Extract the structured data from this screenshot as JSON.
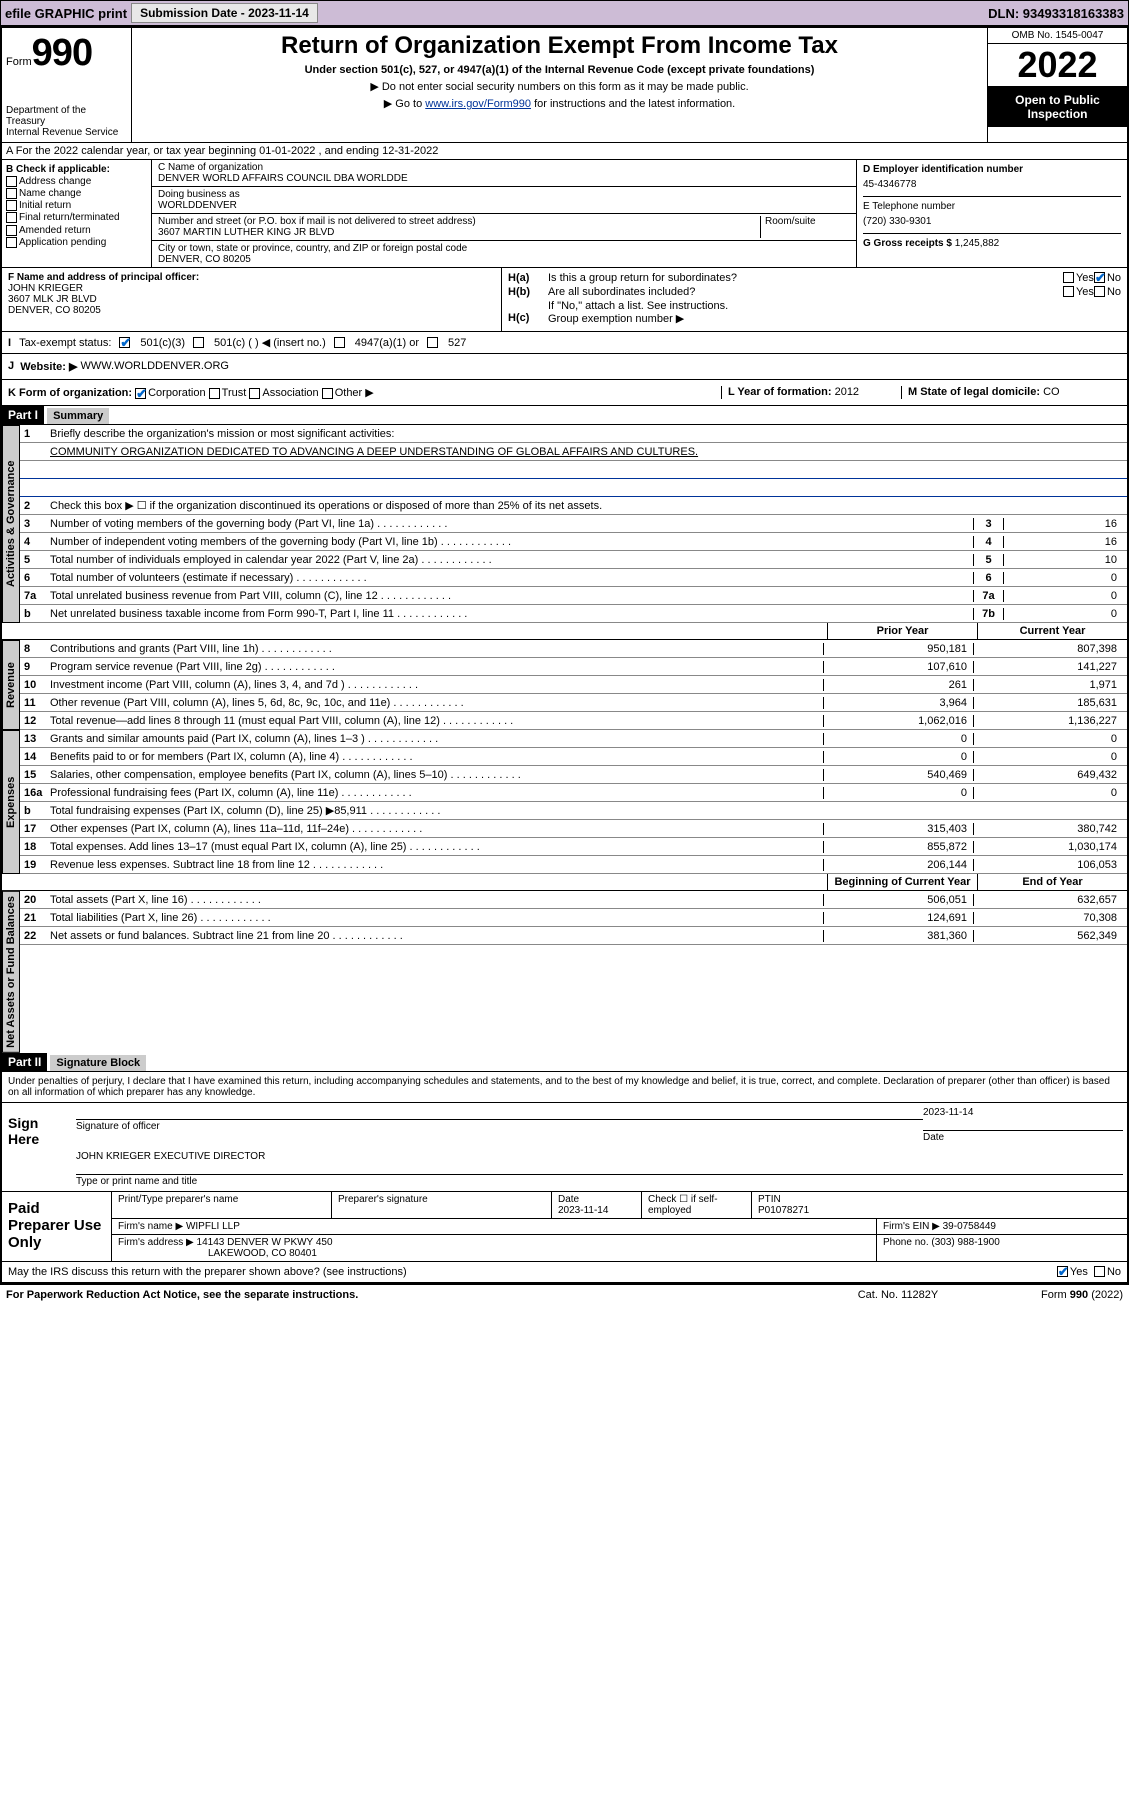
{
  "topbar": {
    "efile": "efile GRAPHIC print",
    "submission_label": "Submission Date - 2023-11-14",
    "dln": "DLN: 93493318163383"
  },
  "header": {
    "form_label": "Form",
    "form_num": "990",
    "dept": "Department of the Treasury\nInternal Revenue Service",
    "title": "Return of Organization Exempt From Income Tax",
    "subtitle": "Under section 501(c), 527, or 4947(a)(1) of the Internal Revenue Code (except private foundations)",
    "note1": "▶ Do not enter social security numbers on this form as it may be made public.",
    "note2_pre": "▶ Go to ",
    "note2_link": "www.irs.gov/Form990",
    "note2_post": " for instructions and the latest information.",
    "omb": "OMB No. 1545-0047",
    "year": "2022",
    "open": "Open to Public Inspection"
  },
  "row_a": "A For the 2022 calendar year, or tax year beginning 01-01-2022    , and ending 12-31-2022",
  "section_b": {
    "label": "B Check if applicable:",
    "opts": [
      "Address change",
      "Name change",
      "Initial return",
      "Final return/terminated",
      "Amended return",
      "Application pending"
    ]
  },
  "section_c": {
    "name_label": "C Name of organization",
    "name": "DENVER WORLD AFFAIRS COUNCIL DBA WORLDDE",
    "dba_label": "Doing business as",
    "dba": "WORLDDENVER",
    "street_label": "Number and street (or P.O. box if mail is not delivered to street address)",
    "room_label": "Room/suite",
    "street": "3607 MARTIN LUTHER KING JR BLVD",
    "city_label": "City or town, state or province, country, and ZIP or foreign postal code",
    "city": "DENVER, CO  80205"
  },
  "section_d": {
    "ein_label": "D Employer identification number",
    "ein": "45-4346778",
    "phone_label": "E Telephone number",
    "phone": "(720) 330-9301",
    "gross_label": "G Gross receipts $",
    "gross": "1,245,882"
  },
  "section_f": {
    "label": "F Name and address of principal officer:",
    "name": "JOHN KRIEGER",
    "street": "3607 MLK JR BLVD",
    "city": "DENVER, CO  80205"
  },
  "section_h": {
    "ha": "Is this a group return for subordinates?",
    "hb": "Are all subordinates included?",
    "hb_note": "If \"No,\" attach a list. See instructions.",
    "hc": "Group exemption number ▶"
  },
  "row_i": {
    "label": "Tax-exempt status:",
    "opt1": "501(c)(3)",
    "opt2": "501(c) (  ) ◀ (insert no.)",
    "opt3": "4947(a)(1) or",
    "opt4": "527"
  },
  "row_j": {
    "label": "Website: ▶",
    "value": "WWW.WORLDDENVER.ORG"
  },
  "row_k": {
    "label": "K Form of organization:",
    "opts": [
      "Corporation",
      "Trust",
      "Association",
      "Other ▶"
    ],
    "l_label": "L Year of formation:",
    "l_val": "2012",
    "m_label": "M State of legal domicile:",
    "m_val": "CO"
  },
  "part1": {
    "hdr": "Part I",
    "title": "Summary",
    "l1_label": "Briefly describe the organization's mission or most significant activities:",
    "l1_text": "COMMUNITY ORGANIZATION DEDICATED TO ADVANCING A DEEP UNDERSTANDING OF GLOBAL AFFAIRS AND CULTURES.",
    "l2": "Check this box ▶ ☐  if the organization discontinued its operations or disposed of more than 25% of its net assets.",
    "lines_gov": [
      {
        "n": "3",
        "t": "Number of voting members of the governing body (Part VI, line 1a)",
        "b": "3",
        "v": "16"
      },
      {
        "n": "4",
        "t": "Number of independent voting members of the governing body (Part VI, line 1b)",
        "b": "4",
        "v": "16"
      },
      {
        "n": "5",
        "t": "Total number of individuals employed in calendar year 2022 (Part V, line 2a)",
        "b": "5",
        "v": "10"
      },
      {
        "n": "6",
        "t": "Total number of volunteers (estimate if necessary)",
        "b": "6",
        "v": "0"
      },
      {
        "n": "7a",
        "t": "Total unrelated business revenue from Part VIII, column (C), line 12",
        "b": "7a",
        "v": "0"
      },
      {
        "n": "b",
        "t": "Net unrelated business taxable income from Form 990-T, Part I, line 11",
        "b": "7b",
        "v": "0"
      }
    ],
    "col_prior": "Prior Year",
    "col_current": "Current Year",
    "lines_rev": [
      {
        "n": "8",
        "t": "Contributions and grants (Part VIII, line 1h)",
        "v1": "950,181",
        "v2": "807,398"
      },
      {
        "n": "9",
        "t": "Program service revenue (Part VIII, line 2g)",
        "v1": "107,610",
        "v2": "141,227"
      },
      {
        "n": "10",
        "t": "Investment income (Part VIII, column (A), lines 3, 4, and 7d )",
        "v1": "261",
        "v2": "1,971"
      },
      {
        "n": "11",
        "t": "Other revenue (Part VIII, column (A), lines 5, 6d, 8c, 9c, 10c, and 11e)",
        "v1": "3,964",
        "v2": "185,631"
      },
      {
        "n": "12",
        "t": "Total revenue—add lines 8 through 11 (must equal Part VIII, column (A), line 12)",
        "v1": "1,062,016",
        "v2": "1,136,227"
      }
    ],
    "lines_exp": [
      {
        "n": "13",
        "t": "Grants and similar amounts paid (Part IX, column (A), lines 1–3 )",
        "v1": "0",
        "v2": "0"
      },
      {
        "n": "14",
        "t": "Benefits paid to or for members (Part IX, column (A), line 4)",
        "v1": "0",
        "v2": "0"
      },
      {
        "n": "15",
        "t": "Salaries, other compensation, employee benefits (Part IX, column (A), lines 5–10)",
        "v1": "540,469",
        "v2": "649,432"
      },
      {
        "n": "16a",
        "t": "Professional fundraising fees (Part IX, column (A), line 11e)",
        "v1": "0",
        "v2": "0"
      },
      {
        "n": "b",
        "t": "Total fundraising expenses (Part IX, column (D), line 25) ▶85,911",
        "v1": "",
        "v2": ""
      },
      {
        "n": "17",
        "t": "Other expenses (Part IX, column (A), lines 11a–11d, 11f–24e)",
        "v1": "315,403",
        "v2": "380,742"
      },
      {
        "n": "18",
        "t": "Total expenses. Add lines 13–17 (must equal Part IX, column (A), line 25)",
        "v1": "855,872",
        "v2": "1,030,174"
      },
      {
        "n": "19",
        "t": "Revenue less expenses. Subtract line 18 from line 12",
        "v1": "206,144",
        "v2": "106,053"
      }
    ],
    "col_begin": "Beginning of Current Year",
    "col_end": "End of Year",
    "lines_net": [
      {
        "n": "20",
        "t": "Total assets (Part X, line 16)",
        "v1": "506,051",
        "v2": "632,657"
      },
      {
        "n": "21",
        "t": "Total liabilities (Part X, line 26)",
        "v1": "124,691",
        "v2": "70,308"
      },
      {
        "n": "22",
        "t": "Net assets or fund balances. Subtract line 21 from line 20",
        "v1": "381,360",
        "v2": "562,349"
      }
    ],
    "vtab_gov": "Activities & Governance",
    "vtab_rev": "Revenue",
    "vtab_exp": "Expenses",
    "vtab_net": "Net Assets or Fund Balances"
  },
  "part2": {
    "hdr": "Part II",
    "title": "Signature Block",
    "decl": "Under penalties of perjury, I declare that I have examined this return, including accompanying schedules and statements, and to the best of my knowledge and belief, it is true, correct, and complete. Declaration of preparer (other than officer) is based on all information of which preparer has any knowledge.",
    "sign_here": "Sign Here",
    "sig_officer": "Signature of officer",
    "sig_date": "Date",
    "sig_date_val": "2023-11-14",
    "sig_name": "JOHN KRIEGER  EXECUTIVE DIRECTOR",
    "sig_name_label": "Type or print name and title",
    "paid_label": "Paid Preparer Use Only",
    "prep_name_label": "Print/Type preparer's name",
    "prep_sig_label": "Preparer's signature",
    "prep_date_label": "Date",
    "prep_date": "2023-11-14",
    "prep_check": "Check ☐ if self-employed",
    "ptin_label": "PTIN",
    "ptin": "P01078271",
    "firm_name_label": "Firm's name    ▶",
    "firm_name": "WIPFLI LLP",
    "firm_ein_label": "Firm's EIN ▶",
    "firm_ein": "39-0758449",
    "firm_addr_label": "Firm's address ▶",
    "firm_addr": "14143 DENVER W PKWY 450",
    "firm_city": "LAKEWOOD, CO  80401",
    "firm_phone_label": "Phone no.",
    "firm_phone": "(303) 988-1900",
    "discuss": "May the IRS discuss this return with the preparer shown above? (see instructions)"
  },
  "footer": {
    "left": "For Paperwork Reduction Act Notice, see the separate instructions.",
    "mid": "Cat. No. 11282Y",
    "right": "Form 990 (2022)"
  }
}
